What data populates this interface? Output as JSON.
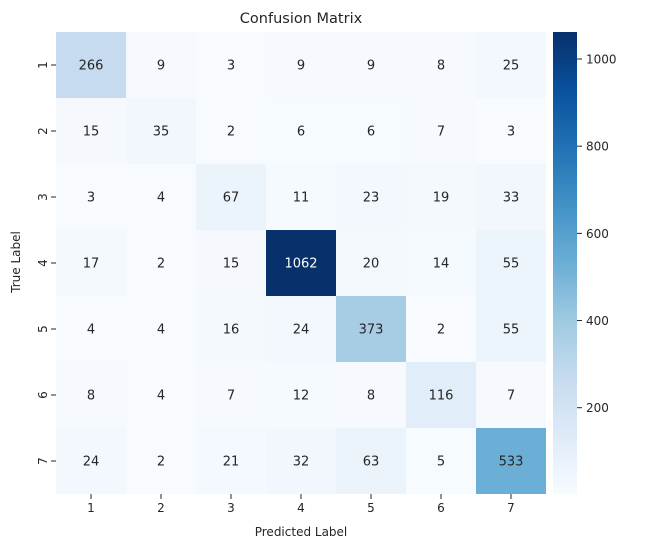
{
  "chart_data": {
    "type": "heatmap",
    "title": "Confusion Matrix",
    "xlabel": "Predicted Label",
    "ylabel": "True Label",
    "x_categories": [
      "1",
      "2",
      "3",
      "4",
      "5",
      "6",
      "7"
    ],
    "y_categories": [
      "1",
      "2",
      "3",
      "4",
      "5",
      "6",
      "7"
    ],
    "values": [
      [
        266,
        9,
        3,
        9,
        9,
        8,
        25
      ],
      [
        15,
        35,
        2,
        6,
        6,
        7,
        3
      ],
      [
        3,
        4,
        67,
        11,
        23,
        19,
        33
      ],
      [
        17,
        2,
        15,
        1062,
        20,
        14,
        55
      ],
      [
        4,
        4,
        16,
        24,
        373,
        2,
        55
      ],
      [
        8,
        4,
        7,
        12,
        8,
        116,
        7
      ],
      [
        24,
        2,
        21,
        32,
        63,
        5,
        533
      ]
    ],
    "colormap": "Blues",
    "colorbar_range": [
      2,
      1062
    ],
    "colorbar_ticks": [
      "200",
      "400",
      "600",
      "800",
      "1000"
    ],
    "colorbar_tick_values": [
      200,
      400,
      600,
      800,
      1000
    ]
  }
}
